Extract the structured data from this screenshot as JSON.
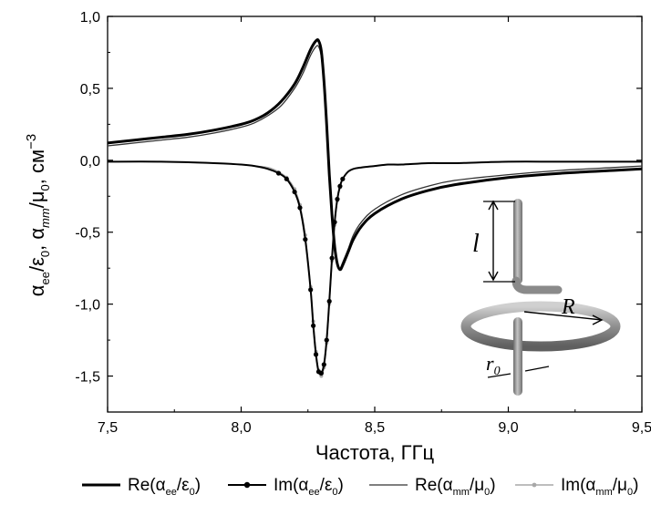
{
  "chart_data": {
    "type": "line",
    "xlabel": "Частота, ГГц",
    "ylabel": {
      "p1": "α",
      "s1": "ee",
      "p2": "/ε",
      "s2": "0",
      "p3": ", α",
      "s3": "mm",
      "p4": "/μ",
      "s4": "0",
      "p5": ", см",
      "sup": "−3"
    },
    "xlim": [
      7.5,
      9.5
    ],
    "ylim": [
      -1.75,
      1.0
    ],
    "xticks": [
      7.5,
      8.0,
      8.5,
      9.0,
      9.5
    ],
    "xtick_labels": [
      "7,5",
      "8,0",
      "8,5",
      "9,0",
      "9,5"
    ],
    "yticks": [
      1.0,
      0.5,
      0.0,
      -0.5,
      -1.0,
      -1.5
    ],
    "ytick_labels": [
      "1,0",
      "0,5",
      "0,0",
      "-0,5",
      "-1,0",
      "-1,5"
    ],
    "grid": false,
    "legend_position": "bottom",
    "series": [
      {
        "name": "Re(α_ee/ε_0)",
        "legend": {
          "pre": "Re(α",
          "sub1": "ee",
          "mid": "/ε",
          "sub2": "0",
          "post": ")"
        },
        "style": {
          "color": "#000000",
          "width": 3,
          "marker": "none"
        },
        "x": [
          7.5,
          7.6,
          7.7,
          7.8,
          7.9,
          8.0,
          8.05,
          8.1,
          8.15,
          8.2,
          8.23,
          8.26,
          8.28,
          8.29,
          8.3,
          8.31,
          8.32,
          8.33,
          8.34,
          8.35,
          8.36,
          8.37,
          8.38,
          8.4,
          8.42,
          8.45,
          8.5,
          8.6,
          8.7,
          8.8,
          9.0,
          9.2,
          9.4,
          9.5
        ],
        "y": [
          0.12,
          0.14,
          0.16,
          0.18,
          0.21,
          0.25,
          0.28,
          0.33,
          0.41,
          0.53,
          0.64,
          0.77,
          0.83,
          0.83,
          0.76,
          0.55,
          0.25,
          -0.1,
          -0.38,
          -0.6,
          -0.72,
          -0.76,
          -0.73,
          -0.64,
          -0.55,
          -0.46,
          -0.37,
          -0.27,
          -0.21,
          -0.17,
          -0.12,
          -0.09,
          -0.07,
          -0.06
        ]
      },
      {
        "name": "Im(α_ee/ε_0)",
        "legend": {
          "pre": "Im(α",
          "sub1": "ee",
          "mid": "/ε",
          "sub2": "0",
          "post": ")"
        },
        "style": {
          "color": "#000000",
          "width": 2,
          "marker": "circle"
        },
        "x": [
          7.5,
          7.7,
          7.9,
          8.0,
          8.05,
          8.1,
          8.14,
          8.17,
          8.2,
          8.22,
          8.24,
          8.26,
          8.27,
          8.28,
          8.29,
          8.3,
          8.31,
          8.32,
          8.33,
          8.34,
          8.35,
          8.36,
          8.37,
          8.38,
          8.4,
          8.42,
          8.45,
          8.5,
          8.55,
          8.6,
          8.7,
          8.8,
          9.0,
          9.2,
          9.5
        ],
        "y": [
          -0.01,
          -0.01,
          -0.02,
          -0.03,
          -0.04,
          -0.06,
          -0.09,
          -0.13,
          -0.22,
          -0.33,
          -0.55,
          -0.9,
          -1.15,
          -1.35,
          -1.47,
          -1.48,
          -1.42,
          -1.25,
          -0.98,
          -0.68,
          -0.43,
          -0.27,
          -0.18,
          -0.13,
          -0.08,
          -0.06,
          -0.05,
          -0.04,
          -0.03,
          -0.03,
          -0.02,
          -0.02,
          -0.01,
          -0.01,
          -0.01
        ]
      },
      {
        "name": "Re(α_mm/μ_0)",
        "legend": {
          "pre": "Re(α",
          "sub1": "mm",
          "mid": "/μ",
          "sub2": "0",
          "post": ")"
        },
        "style": {
          "color": "#333333",
          "width": 1.3,
          "marker": "none"
        },
        "x": [
          7.5,
          7.6,
          7.7,
          7.8,
          7.9,
          8.0,
          8.05,
          8.1,
          8.15,
          8.2,
          8.23,
          8.26,
          8.28,
          8.29,
          8.3,
          8.31,
          8.32,
          8.33,
          8.34,
          8.35,
          8.36,
          8.37,
          8.38,
          8.4,
          8.42,
          8.45,
          8.5,
          8.6,
          8.7,
          8.8,
          9.0,
          9.2,
          9.4,
          9.5
        ],
        "y": [
          0.1,
          0.12,
          0.14,
          0.16,
          0.19,
          0.23,
          0.26,
          0.31,
          0.38,
          0.5,
          0.6,
          0.73,
          0.79,
          0.79,
          0.72,
          0.52,
          0.22,
          -0.12,
          -0.4,
          -0.61,
          -0.72,
          -0.75,
          -0.71,
          -0.62,
          -0.52,
          -0.43,
          -0.34,
          -0.24,
          -0.18,
          -0.14,
          -0.1,
          -0.07,
          -0.05,
          -0.04
        ]
      },
      {
        "name": "Im(α_mm/μ_0)",
        "legend": {
          "pre": "Im(α",
          "sub1": "mm",
          "mid": "/μ",
          "sub2": "0",
          "post": ")"
        },
        "style": {
          "color": "#a8a8a8",
          "width": 1.4,
          "marker": "circle-small"
        },
        "x": [
          7.5,
          7.7,
          7.9,
          8.0,
          8.05,
          8.1,
          8.14,
          8.17,
          8.2,
          8.22,
          8.24,
          8.26,
          8.27,
          8.28,
          8.29,
          8.3,
          8.31,
          8.32,
          8.33,
          8.34,
          8.35,
          8.36,
          8.37,
          8.38,
          8.4,
          8.42,
          8.45,
          8.5,
          8.55,
          8.6,
          8.7,
          8.8,
          9.0,
          9.2,
          9.5
        ],
        "y": [
          -0.01,
          -0.01,
          -0.02,
          -0.03,
          -0.04,
          -0.05,
          -0.08,
          -0.12,
          -0.2,
          -0.31,
          -0.52,
          -0.88,
          -1.12,
          -1.33,
          -1.46,
          -1.5,
          -1.44,
          -1.27,
          -1.0,
          -0.7,
          -0.45,
          -0.28,
          -0.19,
          -0.13,
          -0.08,
          -0.06,
          -0.05,
          -0.04,
          -0.03,
          -0.03,
          -0.02,
          -0.02,
          -0.01,
          -0.01,
          -0.01
        ]
      }
    ],
    "inset_labels": {
      "l": "l",
      "R": "R",
      "r0_main": "r",
      "r0_sub": "0"
    }
  }
}
